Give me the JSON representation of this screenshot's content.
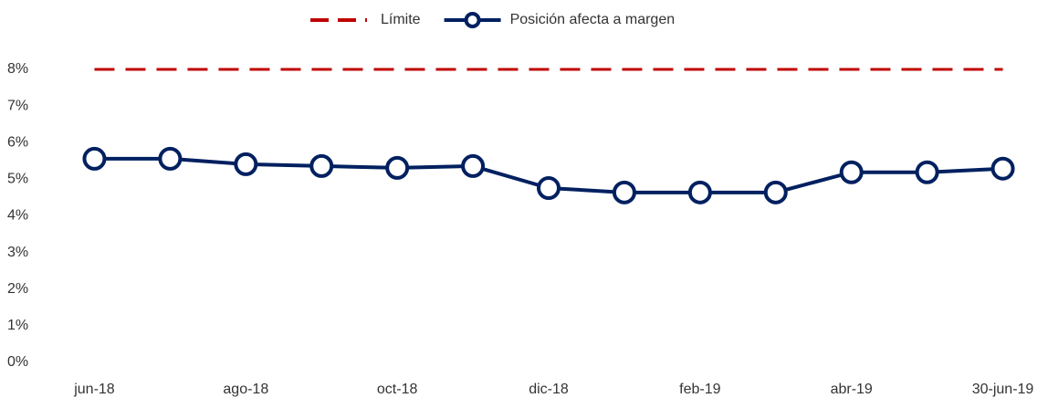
{
  "chart_data": {
    "type": "line",
    "categories": [
      "jun-18",
      null,
      "ago-18",
      null,
      "oct-18",
      null,
      "dic-18",
      null,
      "feb-19",
      null,
      "abr-19",
      null,
      "30-jun-19"
    ],
    "series": [
      {
        "name": "Límite",
        "color": "#c00000",
        "line_style": "dashed",
        "marker": false,
        "values": [
          8,
          8,
          8,
          8,
          8,
          8,
          8,
          8,
          8,
          8,
          8,
          8,
          8
        ]
      },
      {
        "name": "Posición afecta a margen",
        "color": "#002060",
        "line_style": "solid",
        "marker": true,
        "values": [
          5.56,
          5.56,
          5.41,
          5.36,
          5.31,
          5.36,
          4.76,
          4.64,
          4.64,
          4.64,
          5.19,
          5.19,
          5.29
        ]
      }
    ],
    "ylim": [
      0,
      8
    ],
    "yticks": [
      {
        "value": 0,
        "label": "0%"
      },
      {
        "value": 1,
        "label": "1%"
      },
      {
        "value": 2,
        "label": "2%"
      },
      {
        "value": 3,
        "label": "3%"
      },
      {
        "value": 4,
        "label": "4%"
      },
      {
        "value": 5,
        "label": "5%"
      },
      {
        "value": 6,
        "label": "6%"
      },
      {
        "value": 7,
        "label": "7%"
      },
      {
        "value": 8,
        "label": "8%"
      }
    ],
    "grid": false,
    "legend": "top"
  }
}
